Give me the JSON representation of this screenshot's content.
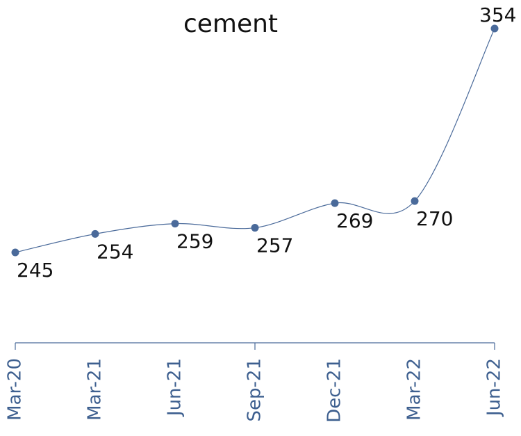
{
  "chart_data": {
    "type": "line",
    "title": "cement",
    "categories": [
      "Mar-20",
      "Mar-21",
      "Jun-21",
      "Sep-21",
      "Dec-21",
      "Mar-22",
      "Jun-22"
    ],
    "values": [
      245,
      254,
      259,
      257,
      269,
      270,
      354
    ],
    "color": "#4a6a9a",
    "smooth": true
  }
}
